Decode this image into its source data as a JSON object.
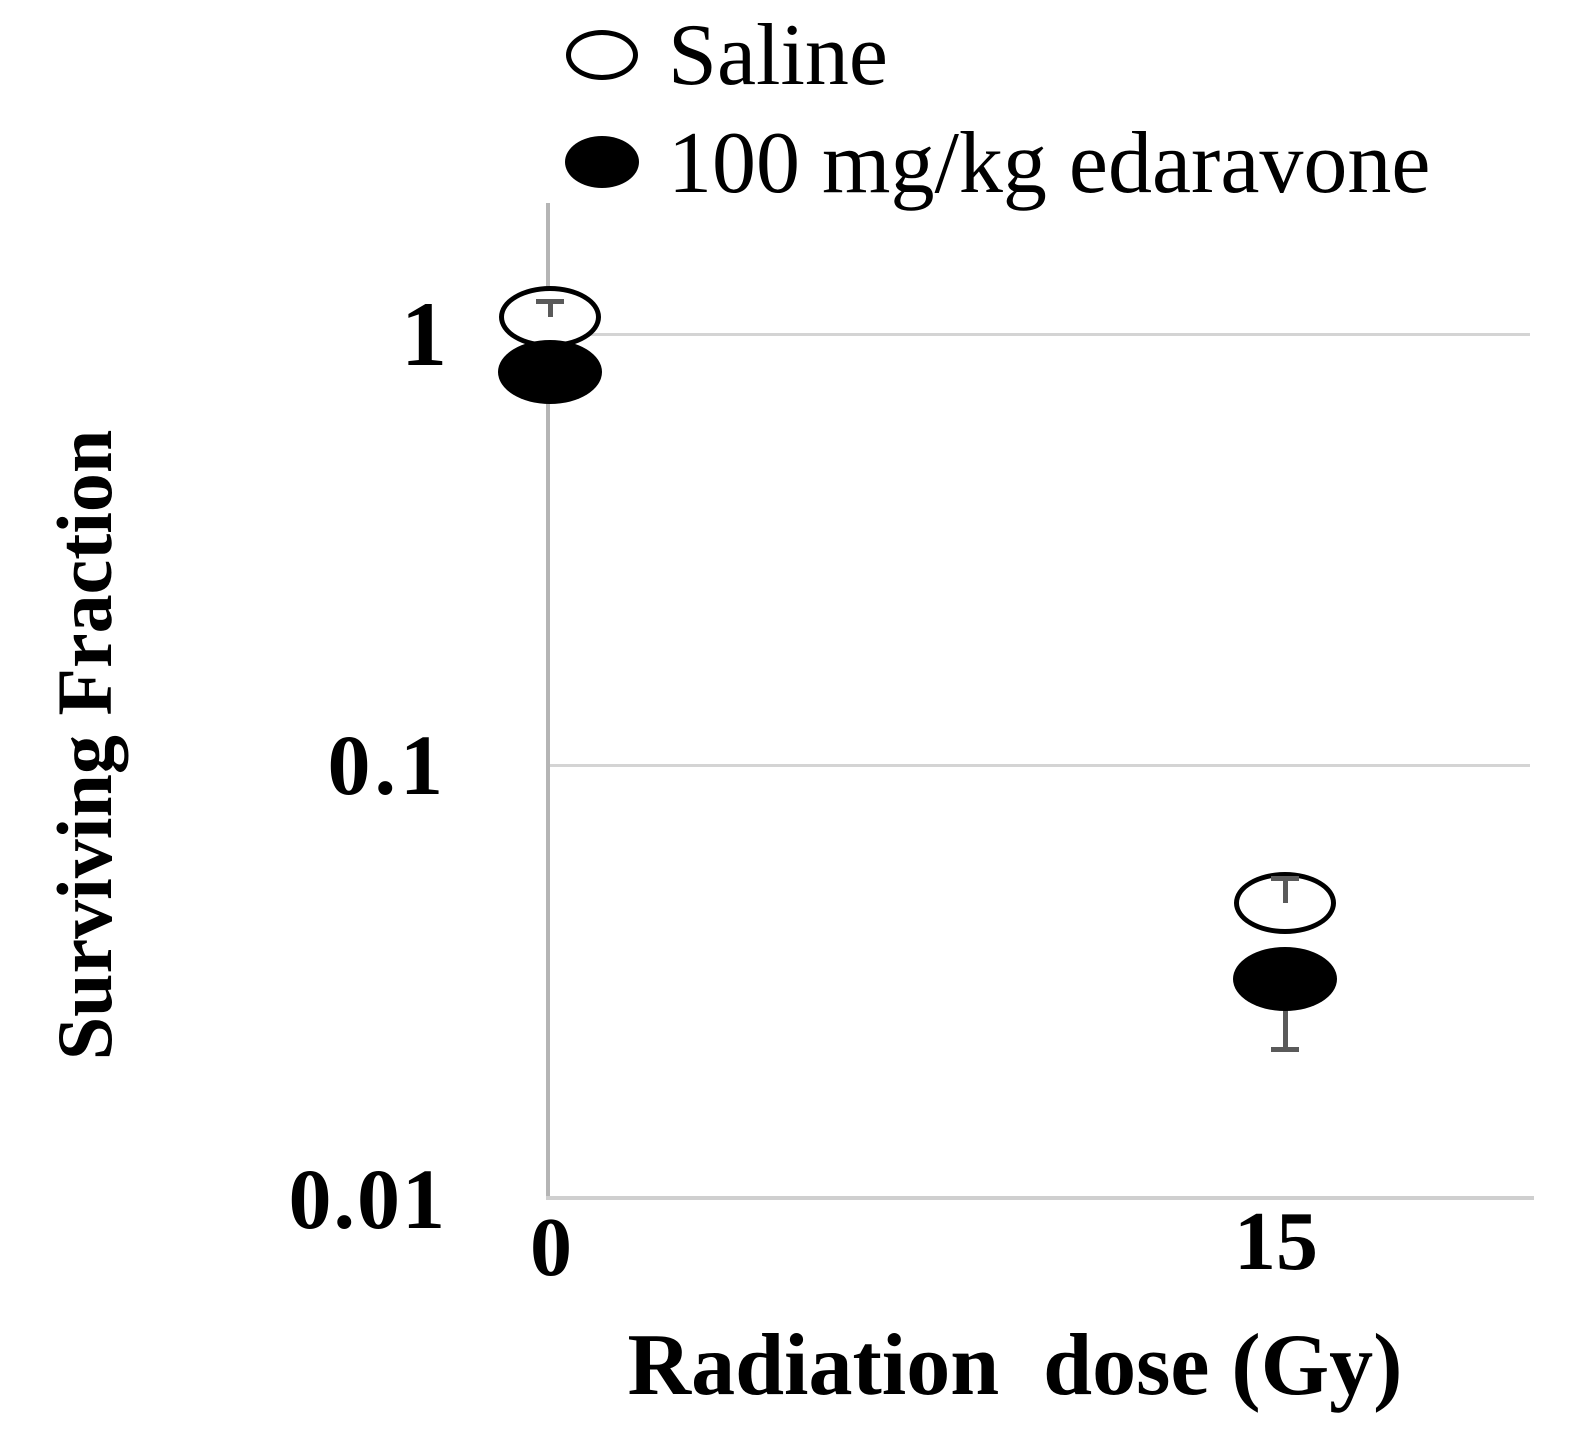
{
  "legend": {
    "items": [
      {
        "label": "Saline",
        "marker": "open-circle"
      },
      {
        "label": "100 mg/kg edaravone",
        "marker": "filled-circle"
      }
    ]
  },
  "axes": {
    "y": {
      "label": "Surviving Fraction",
      "scale": "log",
      "ticks": [
        "1",
        "0.1",
        "0.01"
      ]
    },
    "x": {
      "label": "Radiation  dose (Gy)",
      "ticks": [
        "0",
        "15"
      ]
    }
  },
  "chart_data": {
    "type": "scatter",
    "title": "",
    "xlabel": "Radiation  dose (Gy)",
    "ylabel": "Surviving Fraction",
    "x": [
      0,
      15
    ],
    "x_unit": "Gy",
    "yscale": "log",
    "ylim": [
      0.01,
      2
    ],
    "ygridlines": [
      1,
      0.1
    ],
    "legend_position": "top",
    "series": [
      {
        "name": "Saline",
        "marker": "open-circle",
        "values": [
          1.1,
          0.048
        ],
        "err_upper": [
          1.2,
          0.055
        ],
        "err_lower": [
          null,
          null
        ]
      },
      {
        "name": "100 mg/kg edaravone",
        "marker": "filled-circle",
        "values": [
          0.82,
          0.032
        ],
        "err_upper": [
          null,
          null
        ],
        "err_lower": [
          null,
          0.022
        ]
      }
    ]
  },
  "colors": {
    "ink": "#000000",
    "grid": "#d4d4d4",
    "axis": "#b5b5b5",
    "error_bar": "#5a5a5a",
    "background": "#ffffff"
  }
}
